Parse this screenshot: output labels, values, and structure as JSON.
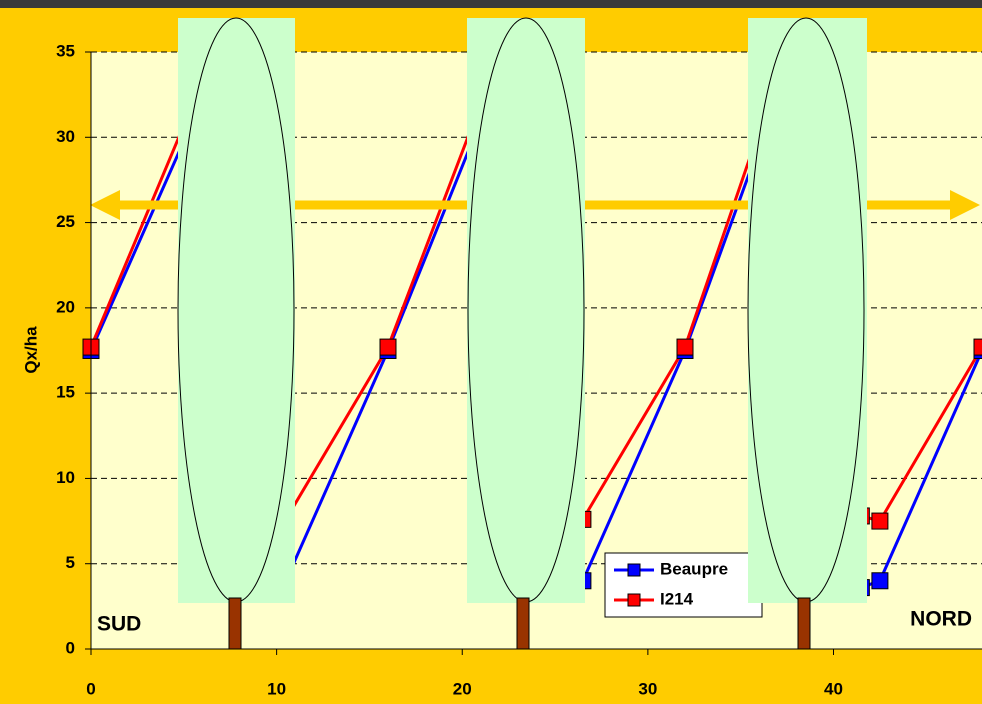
{
  "chart_data": {
    "type": "line",
    "ylabel": "Qx/ha",
    "x": [
      0,
      5.5,
      10.5,
      16,
      21,
      26.5,
      32,
      36.5,
      41.5,
      42.5,
      48
    ],
    "series": [
      {
        "name": "Beaupre",
        "color": "#0000ff",
        "values": [
          17.5,
          31,
          4,
          17.5,
          31,
          4,
          17.5,
          31,
          3.6,
          4,
          17.5
        ]
      },
      {
        "name": "I214",
        "color": "#ff0000",
        "values": [
          17.7,
          32,
          7.6,
          17.7,
          32,
          7.6,
          17.7,
          32,
          7.8,
          7.5,
          17.7
        ]
      }
    ],
    "xlim": [
      0,
      48
    ],
    "ylim": [
      0,
      35
    ],
    "xticks": [
      0,
      10,
      20,
      30,
      40
    ],
    "yticks": [
      0,
      5,
      10,
      15,
      20,
      25,
      30,
      35
    ],
    "grid": true,
    "annotations": [
      "SUD",
      "NORD"
    ]
  }
}
